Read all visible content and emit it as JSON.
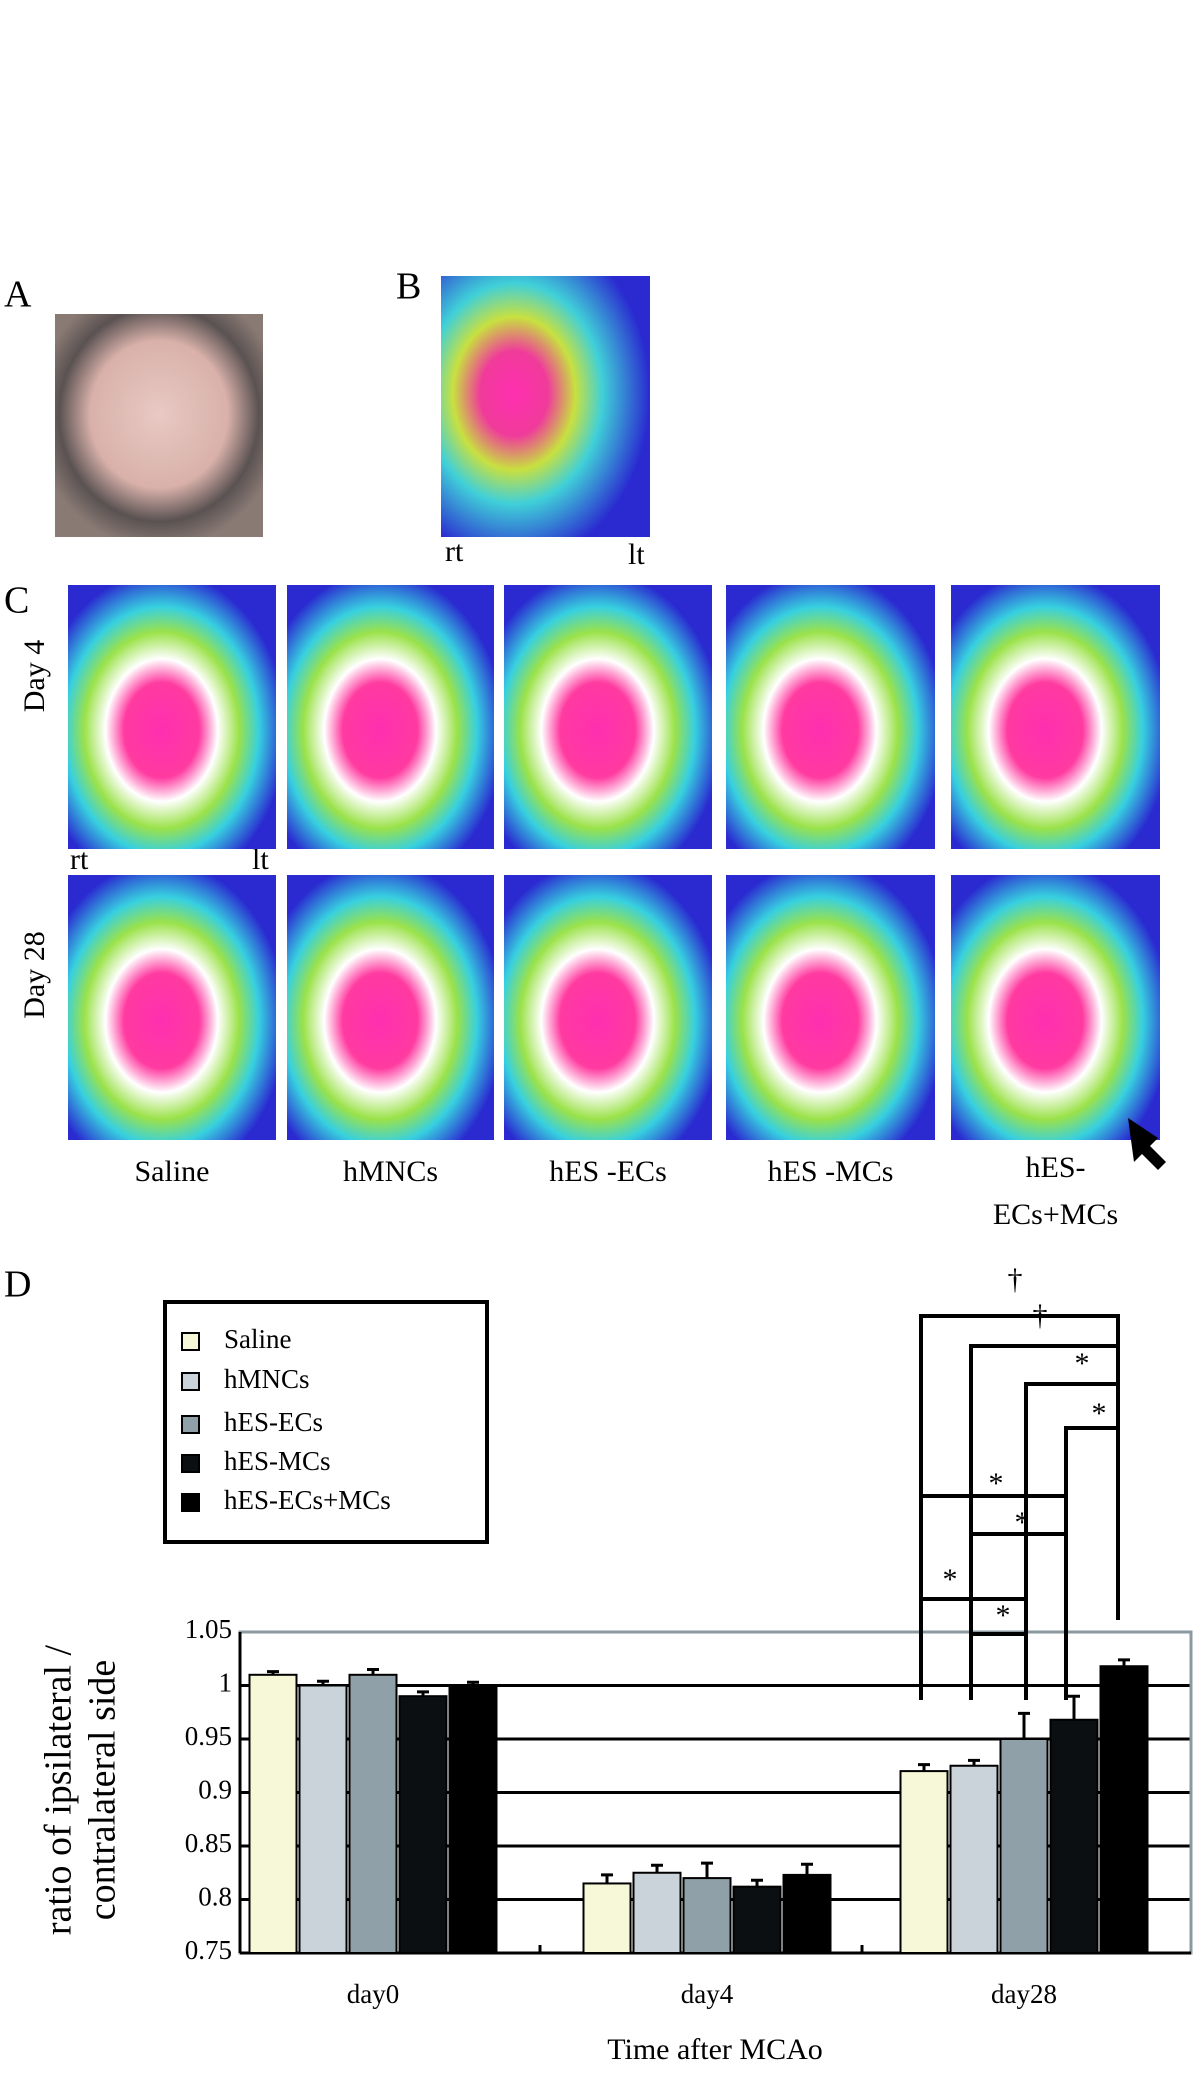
{
  "panel_labels": [
    "A",
    "B",
    "C",
    "D"
  ],
  "panel_b": {
    "left": "rt",
    "right": "lt"
  },
  "panel_c": {
    "rows": [
      "Day 4",
      "Day 28"
    ],
    "left": "rt",
    "right": "lt",
    "group_labels": [
      "Saline",
      "hMNCs",
      "hES -ECs",
      "hES -MCs",
      [
        "hES-",
        "ECs+MCs"
      ]
    ]
  },
  "chart_data": {
    "type": "bar",
    "categories": [
      "day0",
      "day4",
      "day28"
    ],
    "xlabel": "Time after MCAo",
    "ylabel": [
      "ratio of ipsilateral /",
      "contralateral side"
    ],
    "ylim": [
      0.75,
      1.05
    ],
    "yticks": [
      0.75,
      0.8,
      0.85,
      0.9,
      0.95,
      1,
      1.05
    ],
    "grid": true,
    "legend": "upper left",
    "series": [
      {
        "name": "Saline",
        "color": "#f6f8d8",
        "values": [
          1.01,
          0.815,
          0.92
        ],
        "errors": [
          0.003,
          0.008,
          0.006
        ]
      },
      {
        "name": "hMNCs",
        "color": "#c9d3d9",
        "values": [
          1.0,
          0.825,
          0.925
        ],
        "errors": [
          0.004,
          0.007,
          0.005
        ]
      },
      {
        "name": "hES-ECs",
        "color": "#8fa0a8",
        "values": [
          1.01,
          0.82,
          0.95
        ],
        "errors": [
          0.005,
          0.014,
          0.024
        ]
      },
      {
        "name": "hES-MCs",
        "color": "#0b0f11",
        "values": [
          0.99,
          0.812,
          0.968
        ],
        "errors": [
          0.004,
          0.006,
          0.022
        ]
      },
      {
        "name": "hES-ECs+MCs",
        "color": "#000000",
        "values": [
          1.0,
          0.823,
          1.018
        ],
        "errors": [
          0.003,
          0.01,
          0.006
        ]
      }
    ],
    "annotations": [
      "†",
      "†",
      "*",
      "*",
      "*",
      "*",
      "*",
      "*"
    ]
  }
}
